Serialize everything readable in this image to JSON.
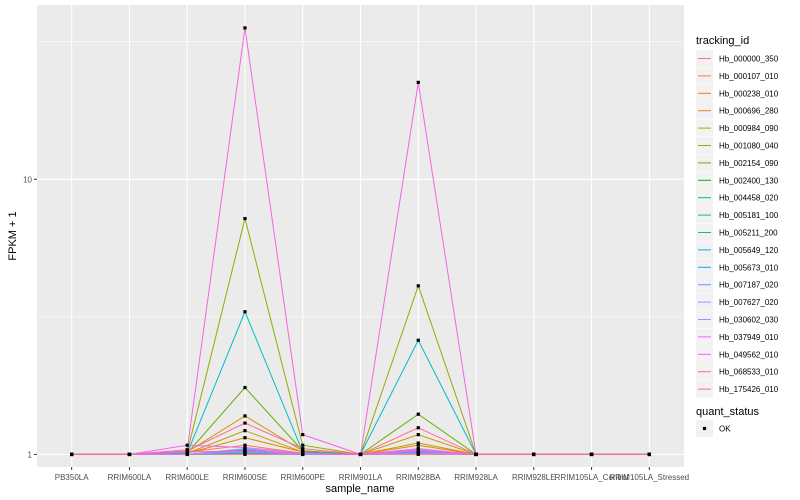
{
  "chart_data": {
    "type": "line",
    "xlabel": "sample_name",
    "ylabel": "FPKM + 1",
    "y_scale": "log10",
    "ylim": [
      0.9,
      43
    ],
    "grid": true,
    "legend_position": "right",
    "categories": [
      "PB350LA",
      "RRIM600LA",
      "RRIM600LE",
      "RRIM600SE",
      "RRIM600PE",
      "RRIM901LA",
      "RRIM928BA",
      "RRIM928LA",
      "RRIM928LE",
      "RRIM105LA_Control",
      "RRIM105LA_Stressed"
    ],
    "y_ticks": [
      {
        "value": 1,
        "label": "1"
      },
      {
        "value": 10,
        "label": "10"
      }
    ],
    "legend_color_title": "tracking_id",
    "legend_shape_title": "quant_status",
    "status_labels": [
      "OK"
    ],
    "series": [
      {
        "name": "Hb_000000_350",
        "color": "#F8766D",
        "values": [
          1,
          1,
          1,
          1,
          1,
          1,
          1,
          1,
          1,
          1,
          1
        ]
      },
      {
        "name": "Hb_000107_010",
        "color": "#F17E4F",
        "values": [
          1,
          1,
          1.02,
          1.08,
          1.01,
          1,
          1.03,
          1,
          1,
          1,
          1
        ]
      },
      {
        "name": "Hb_000238_010",
        "color": "#E58700",
        "values": [
          1,
          1,
          1.01,
          1.15,
          1.02,
          1,
          1.08,
          1,
          1,
          1,
          1
        ]
      },
      {
        "name": "Hb_000696_280",
        "color": "#D69100",
        "values": [
          1,
          1,
          1.02,
          1.38,
          1.03,
          1,
          1.18,
          1,
          1,
          1,
          1
        ]
      },
      {
        "name": "Hb_000984_090",
        "color": "#C49A00",
        "values": [
          1,
          1,
          1.01,
          1.22,
          1.02,
          1,
          1.1,
          1,
          1,
          1,
          1
        ]
      },
      {
        "name": "Hb_001080_040",
        "color": "#9AA800",
        "values": [
          1,
          1,
          1.02,
          7.2,
          1.08,
          1,
          4.1,
          1,
          1,
          1,
          1
        ]
      },
      {
        "name": "Hb_002154_090",
        "color": "#62B200",
        "values": [
          1,
          1,
          1.01,
          1.75,
          1.03,
          1,
          1.4,
          1,
          1,
          1,
          1
        ]
      },
      {
        "name": "Hb_002400_130",
        "color": "#00B813",
        "values": [
          1,
          1,
          1,
          1.03,
          1,
          1,
          1.02,
          1,
          1,
          1,
          1
        ]
      },
      {
        "name": "Hb_004458_020",
        "color": "#00BE70",
        "values": [
          1,
          1,
          1,
          1.02,
          1,
          1,
          1.01,
          1,
          1,
          1,
          1
        ]
      },
      {
        "name": "Hb_005181_100",
        "color": "#00C19C",
        "values": [
          1,
          1,
          1,
          1.01,
          1,
          1,
          1.01,
          1,
          1,
          1,
          1
        ]
      },
      {
        "name": "Hb_005211_200",
        "color": "#00BFC4",
        "values": [
          1,
          1,
          1.01,
          3.3,
          1.02,
          1,
          2.6,
          1,
          1,
          1,
          1
        ]
      },
      {
        "name": "Hb_005649_120",
        "color": "#00B8E5",
        "values": [
          1,
          1,
          1,
          1.04,
          1,
          1,
          1.03,
          1,
          1,
          1,
          1
        ]
      },
      {
        "name": "Hb_005673_010",
        "color": "#00ABFD",
        "values": [
          1,
          1,
          1,
          1.02,
          1,
          1,
          1.02,
          1,
          1,
          1,
          1
        ]
      },
      {
        "name": "Hb_007187_020",
        "color": "#619CFF",
        "values": [
          1,
          1,
          1,
          1.03,
          1,
          1,
          1.02,
          1,
          1,
          1,
          1
        ]
      },
      {
        "name": "Hb_007627_020",
        "color": "#9B8EFF",
        "values": [
          1,
          1,
          1,
          1.05,
          1,
          1,
          1.04,
          1,
          1,
          1,
          1
        ]
      },
      {
        "name": "Hb_030602_030",
        "color": "#C77CFF",
        "values": [
          1,
          1,
          1,
          1.02,
          1,
          1,
          1.01,
          1,
          1,
          1,
          1
        ]
      },
      {
        "name": "Hb_037949_010",
        "color": "#E76BF3",
        "values": [
          1,
          1,
          1.08,
          1.06,
          1.01,
          1,
          1.05,
          1,
          1,
          1,
          1
        ]
      },
      {
        "name": "Hb_049562_010",
        "color": "#F564E3",
        "values": [
          1,
          1,
          1.04,
          35.5,
          1.18,
          1,
          22.5,
          1,
          1,
          1,
          1
        ]
      },
      {
        "name": "Hb_068533_010",
        "color": "#FF61C3",
        "values": [
          1,
          1,
          1.02,
          1.03,
          1.01,
          1,
          1.03,
          1,
          1,
          1,
          1
        ]
      },
      {
        "name": "Hb_175426_010",
        "color": "#FF6C91",
        "values": [
          1,
          1,
          1.03,
          1.3,
          1.05,
          1,
          1.25,
          1,
          1,
          1,
          1
        ]
      }
    ]
  }
}
